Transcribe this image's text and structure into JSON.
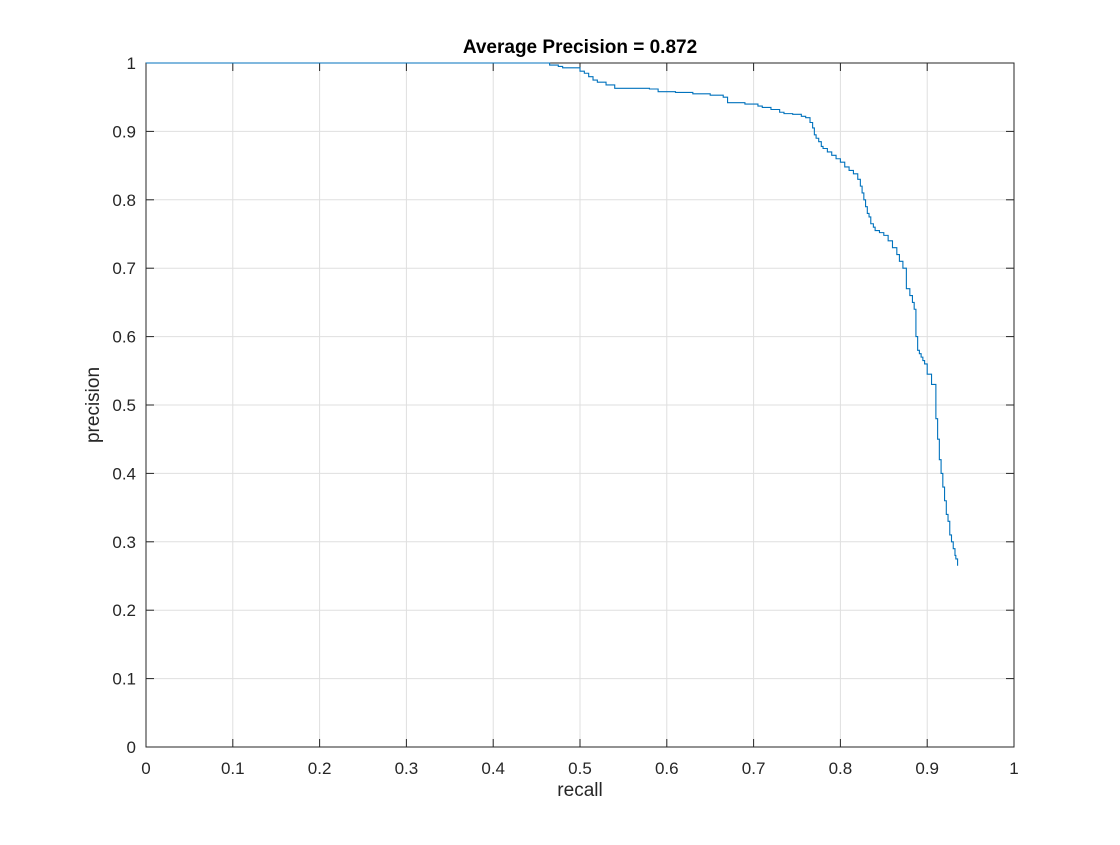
{
  "chart_data": {
    "type": "line",
    "title": "Average Precision = 0.872",
    "xlabel": "recall",
    "ylabel": "precision",
    "xlim": [
      0,
      1
    ],
    "ylim": [
      0,
      1
    ],
    "xticks": [
      "0",
      "0.1",
      "0.2",
      "0.3",
      "0.4",
      "0.5",
      "0.6",
      "0.7",
      "0.8",
      "0.9",
      "1"
    ],
    "yticks": [
      "0",
      "0.1",
      "0.2",
      "0.3",
      "0.4",
      "0.5",
      "0.6",
      "0.7",
      "0.8",
      "0.9",
      "1"
    ],
    "grid": true,
    "line_style": "stairs",
    "line_color": "#0072bd",
    "series": [
      {
        "x": [
          0,
          0.463,
          0.465,
          0.47,
          0.475,
          0.48,
          0.495,
          0.5,
          0.505,
          0.51,
          0.515,
          0.52,
          0.53,
          0.54,
          0.56,
          0.58,
          0.59,
          0.61,
          0.63,
          0.65,
          0.665,
          0.67,
          0.69,
          0.705,
          0.71,
          0.72,
          0.73,
          0.735,
          0.745,
          0.755,
          0.76,
          0.765,
          0.768,
          0.77,
          0.772,
          0.775,
          0.778,
          0.78,
          0.785,
          0.79,
          0.795,
          0.8,
          0.805,
          0.81,
          0.815,
          0.82,
          0.823,
          0.825,
          0.827,
          0.829,
          0.831,
          0.833,
          0.835,
          0.838,
          0.84,
          0.845,
          0.85,
          0.855,
          0.86,
          0.865,
          0.868,
          0.872,
          0.876,
          0.88,
          0.883,
          0.885,
          0.887,
          0.889,
          0.891,
          0.893,
          0.895,
          0.897,
          0.9,
          0.905,
          0.91,
          0.912,
          0.914,
          0.916,
          0.918,
          0.92,
          0.922,
          0.924,
          0.926,
          0.928,
          0.93,
          0.932,
          0.933,
          0.935
        ],
        "y": [
          1.0,
          1.0,
          0.997,
          0.997,
          0.995,
          0.993,
          0.993,
          0.988,
          0.985,
          0.98,
          0.975,
          0.972,
          0.968,
          0.963,
          0.963,
          0.962,
          0.958,
          0.957,
          0.955,
          0.953,
          0.95,
          0.942,
          0.94,
          0.937,
          0.935,
          0.932,
          0.928,
          0.926,
          0.925,
          0.922,
          0.92,
          0.913,
          0.905,
          0.895,
          0.89,
          0.885,
          0.878,
          0.875,
          0.87,
          0.865,
          0.86,
          0.855,
          0.848,
          0.843,
          0.838,
          0.83,
          0.82,
          0.81,
          0.8,
          0.79,
          0.78,
          0.775,
          0.765,
          0.76,
          0.755,
          0.752,
          0.748,
          0.74,
          0.73,
          0.72,
          0.71,
          0.7,
          0.67,
          0.66,
          0.65,
          0.64,
          0.6,
          0.58,
          0.575,
          0.57,
          0.565,
          0.56,
          0.545,
          0.53,
          0.48,
          0.45,
          0.42,
          0.4,
          0.38,
          0.36,
          0.34,
          0.33,
          0.31,
          0.3,
          0.29,
          0.28,
          0.275,
          0.265
        ]
      }
    ]
  }
}
